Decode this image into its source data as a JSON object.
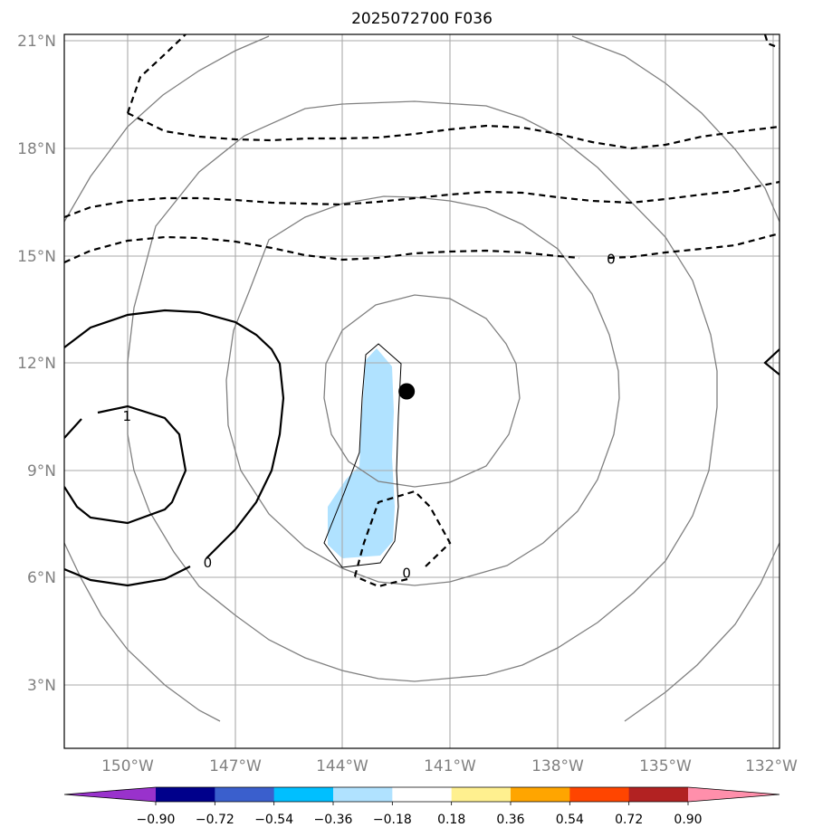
{
  "title": "2025072700 F036",
  "map": {
    "lat_ticks": [
      "21°N",
      "18°N",
      "15°N",
      "12°N",
      "9°N",
      "6°N",
      "3°N"
    ],
    "lon_ticks": [
      "150°W",
      "147°W",
      "144°W",
      "141°W",
      "138°W",
      "135°W",
      "132°W"
    ],
    "extent": {
      "lon_min": -151.75,
      "lon_max": -131.8,
      "lat_min": 1.2,
      "lat_max": 21.2
    },
    "center_marker": {
      "lon": -142.2,
      "lat": 11.2
    },
    "contour_labels": [
      {
        "text": "0",
        "lon": -136.5,
        "lat": 14.9
      },
      {
        "text": "1",
        "lon": -150.0,
        "lat": 10.5
      },
      {
        "text": "0",
        "lon": -147.75,
        "lat": 6.4
      },
      {
        "text": "0",
        "lon": -142.2,
        "lat": 6.1
      }
    ]
  },
  "colorbar": {
    "ticks": [
      "−0.90",
      "−0.72",
      "−0.54",
      "−0.36",
      "−0.18",
      "0.18",
      "0.36",
      "0.54",
      "0.72",
      "0.90"
    ],
    "colors": [
      "#9932cc",
      "#00008b",
      "#3a5fcd",
      "#00bfff",
      "#b0e2ff",
      "#ffffff",
      "#fff08f",
      "#ffa500",
      "#ff4500",
      "#b22222",
      "#ff8fab"
    ]
  },
  "colors": {
    "grid": "#aaaaaa",
    "circles": "#808080",
    "contour": "#000000",
    "shading": "#b0e2ff"
  }
}
